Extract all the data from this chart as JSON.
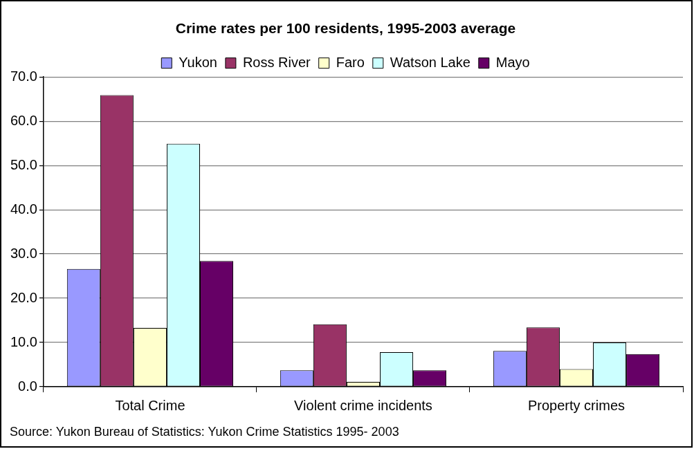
{
  "chart_data": {
    "type": "bar",
    "title": "Crime rates per 100 residents, 1995-2003 average",
    "categories": [
      "Total Crime",
      "Violent crime incidents",
      "Property crimes"
    ],
    "series": [
      {
        "name": "Yukon",
        "color": "#9999ff",
        "values": [
          26.6,
          3.7,
          8.1
        ]
      },
      {
        "name": "Ross River",
        "color": "#993366",
        "values": [
          65.9,
          14.1,
          13.4
        ]
      },
      {
        "name": "Faro",
        "color": "#ffffcc",
        "values": [
          13.3,
          1.1,
          4.0
        ]
      },
      {
        "name": "Watson Lake",
        "color": "#ccffff",
        "values": [
          54.9,
          7.8,
          10.0
        ]
      },
      {
        "name": "Mayo",
        "color": "#660066",
        "values": [
          28.4,
          3.7,
          7.4
        ]
      }
    ],
    "ylim": [
      0,
      70
    ],
    "yticks": [
      {
        "value": 0,
        "label": "0.0"
      },
      {
        "value": 10,
        "label": "10.0"
      },
      {
        "value": 20,
        "label": "20.0"
      },
      {
        "value": 30,
        "label": "30.0"
      },
      {
        "value": 40,
        "label": "40.0"
      },
      {
        "value": 50,
        "label": "50.0"
      },
      {
        "value": 60,
        "label": "60.0"
      },
      {
        "value": 70,
        "label": "70.0"
      }
    ],
    "grid": "y",
    "legend": "top",
    "annotations": [
      "Source: Yukon Bureau of Statistics: Yukon Crime Statistics 1995- 2003"
    ]
  }
}
